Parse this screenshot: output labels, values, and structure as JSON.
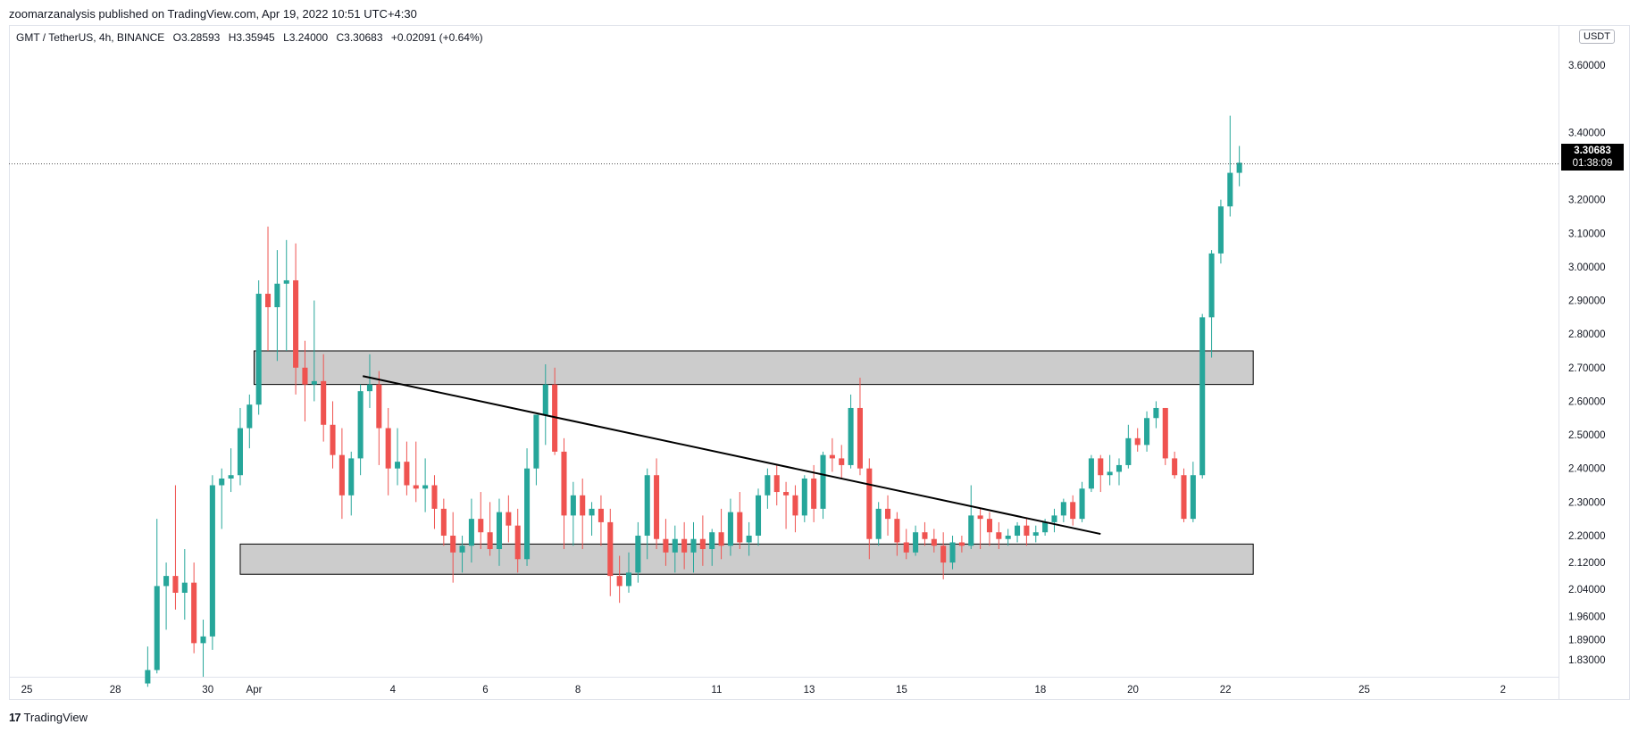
{
  "header": {
    "text": "zoomarzanalysis published on TradingView.com, Apr 19, 2022 10:51 UTC+4:30"
  },
  "legend": {
    "symbol": "GMT / TetherUS, 4h, BINANCE",
    "open": "O3.28593",
    "high": "H3.35945",
    "low": "L3.24000",
    "close": "C3.30683",
    "change": "+0.02091 (+0.64%)"
  },
  "price_axis": {
    "currency": "USDT",
    "last_price": "3.30683",
    "countdown": "01:38:09"
  },
  "footer": {
    "brand": "TradingView",
    "logo_mark": "17"
  },
  "colors": {
    "up": "#26a69a",
    "down": "#ef5350",
    "zone_fill": "#cccccc",
    "zone_border": "#000000",
    "trendline": "#000000"
  },
  "chart_data": {
    "type": "candlestick",
    "title": "GMT / TetherUS, 4h, BINANCE",
    "ylim": [
      1.78,
      3.72
    ],
    "yticks": [
      "3.60000",
      "3.40000",
      "3.20000",
      "3.10000",
      "3.00000",
      "2.90000",
      "2.80000",
      "2.70000",
      "2.60000",
      "2.50000",
      "2.40000",
      "2.30000",
      "2.20000",
      "2.12000",
      "2.04000",
      "1.96000",
      "1.89000",
      "1.83000"
    ],
    "ytick_values": [
      3.6,
      3.4,
      3.2,
      3.1,
      3.0,
      2.9,
      2.8,
      2.7,
      2.6,
      2.5,
      2.4,
      2.3,
      2.2,
      2.12,
      2.04,
      1.96,
      1.89,
      1.83
    ],
    "xlim_days": [
      -5.3,
      28.2
    ],
    "xtick_labels": [
      "25",
      "28",
      "30",
      "Apr",
      "4",
      "6",
      "8",
      "11",
      "13",
      "15",
      "18",
      "20",
      "22",
      "25",
      "2"
    ],
    "xtick_days": [
      -6,
      -3,
      -1,
      0,
      3,
      5,
      7,
      10,
      12,
      14,
      17,
      19,
      21,
      24,
      27
    ],
    "zones": [
      {
        "name": "resistance-zone",
        "start_day": 0.0,
        "end_day": 21.6,
        "top": 2.75,
        "bottom": 2.65
      },
      {
        "name": "support-zone",
        "start_day": -0.3,
        "end_day": 21.6,
        "top": 2.175,
        "bottom": 2.085
      }
    ],
    "trendline": {
      "start_day": 2.35,
      "start_price": 2.675,
      "end_day": 18.3,
      "end_price": 2.205
    },
    "current_price": 3.30683,
    "candle_width_days": 0.13,
    "candles": [
      {
        "d": -2.3,
        "o": 1.76,
        "h": 1.87,
        "l": 1.75,
        "c": 1.8
      },
      {
        "d": -2.1,
        "o": 1.8,
        "h": 2.25,
        "l": 1.79,
        "c": 2.05
      },
      {
        "d": -1.9,
        "o": 2.05,
        "h": 2.12,
        "l": 1.92,
        "c": 2.08
      },
      {
        "d": -1.7,
        "o": 2.08,
        "h": 2.35,
        "l": 1.98,
        "c": 2.03
      },
      {
        "d": -1.5,
        "o": 2.03,
        "h": 2.16,
        "l": 1.95,
        "c": 2.06
      },
      {
        "d": -1.3,
        "o": 2.06,
        "h": 2.12,
        "l": 1.85,
        "c": 1.88
      },
      {
        "d": -1.1,
        "o": 1.88,
        "h": 1.95,
        "l": 1.78,
        "c": 1.9
      },
      {
        "d": -0.9,
        "o": 1.9,
        "h": 2.38,
        "l": 1.86,
        "c": 2.35
      },
      {
        "d": -0.7,
        "o": 2.35,
        "h": 2.4,
        "l": 2.22,
        "c": 2.37
      },
      {
        "d": -0.5,
        "o": 2.37,
        "h": 2.46,
        "l": 2.33,
        "c": 2.38
      },
      {
        "d": -0.3,
        "o": 2.38,
        "h": 2.58,
        "l": 2.35,
        "c": 2.52
      },
      {
        "d": -0.1,
        "o": 2.52,
        "h": 2.62,
        "l": 2.46,
        "c": 2.59
      },
      {
        "d": 0.1,
        "o": 2.59,
        "h": 2.96,
        "l": 2.56,
        "c": 2.92
      },
      {
        "d": 0.3,
        "o": 2.92,
        "h": 3.12,
        "l": 2.75,
        "c": 2.88
      },
      {
        "d": 0.5,
        "o": 2.88,
        "h": 3.05,
        "l": 2.72,
        "c": 2.95
      },
      {
        "d": 0.7,
        "o": 2.95,
        "h": 3.08,
        "l": 2.75,
        "c": 2.96
      },
      {
        "d": 0.9,
        "o": 2.96,
        "h": 3.07,
        "l": 2.62,
        "c": 2.7
      },
      {
        "d": 1.1,
        "o": 2.7,
        "h": 2.78,
        "l": 2.54,
        "c": 2.65
      },
      {
        "d": 1.3,
        "o": 2.65,
        "h": 2.9,
        "l": 2.6,
        "c": 2.66
      },
      {
        "d": 1.5,
        "o": 2.66,
        "h": 2.74,
        "l": 2.48,
        "c": 2.53
      },
      {
        "d": 1.7,
        "o": 2.53,
        "h": 2.6,
        "l": 2.4,
        "c": 2.44
      },
      {
        "d": 1.9,
        "o": 2.44,
        "h": 2.52,
        "l": 2.25,
        "c": 2.32
      },
      {
        "d": 2.1,
        "o": 2.32,
        "h": 2.45,
        "l": 2.26,
        "c": 2.43
      },
      {
        "d": 2.3,
        "o": 2.43,
        "h": 2.65,
        "l": 2.38,
        "c": 2.63
      },
      {
        "d": 2.5,
        "o": 2.63,
        "h": 2.74,
        "l": 2.58,
        "c": 2.65
      },
      {
        "d": 2.7,
        "o": 2.65,
        "h": 2.69,
        "l": 2.41,
        "c": 2.52
      },
      {
        "d": 2.9,
        "o": 2.52,
        "h": 2.58,
        "l": 2.32,
        "c": 2.4
      },
      {
        "d": 3.1,
        "o": 2.4,
        "h": 2.52,
        "l": 2.35,
        "c": 2.42
      },
      {
        "d": 3.3,
        "o": 2.42,
        "h": 2.48,
        "l": 2.32,
        "c": 2.35
      },
      {
        "d": 3.5,
        "o": 2.35,
        "h": 2.48,
        "l": 2.3,
        "c": 2.34
      },
      {
        "d": 3.7,
        "o": 2.34,
        "h": 2.43,
        "l": 2.27,
        "c": 2.35
      },
      {
        "d": 3.9,
        "o": 2.35,
        "h": 2.38,
        "l": 2.22,
        "c": 2.28
      },
      {
        "d": 4.1,
        "o": 2.28,
        "h": 2.31,
        "l": 2.17,
        "c": 2.2
      },
      {
        "d": 4.3,
        "o": 2.2,
        "h": 2.27,
        "l": 2.06,
        "c": 2.15
      },
      {
        "d": 4.5,
        "o": 2.15,
        "h": 2.2,
        "l": 2.09,
        "c": 2.17
      },
      {
        "d": 4.7,
        "o": 2.17,
        "h": 2.31,
        "l": 2.12,
        "c": 2.25
      },
      {
        "d": 4.9,
        "o": 2.25,
        "h": 2.33,
        "l": 2.16,
        "c": 2.21
      },
      {
        "d": 5.1,
        "o": 2.21,
        "h": 2.3,
        "l": 2.14,
        "c": 2.16
      },
      {
        "d": 5.3,
        "o": 2.16,
        "h": 2.31,
        "l": 2.11,
        "c": 2.27
      },
      {
        "d": 5.5,
        "o": 2.27,
        "h": 2.32,
        "l": 2.18,
        "c": 2.23
      },
      {
        "d": 5.7,
        "o": 2.23,
        "h": 2.28,
        "l": 2.09,
        "c": 2.13
      },
      {
        "d": 5.9,
        "o": 2.13,
        "h": 2.46,
        "l": 2.11,
        "c": 2.4
      },
      {
        "d": 6.1,
        "o": 2.4,
        "h": 2.56,
        "l": 2.35,
        "c": 2.56
      },
      {
        "d": 6.3,
        "o": 2.56,
        "h": 2.71,
        "l": 2.47,
        "c": 2.65
      },
      {
        "d": 6.5,
        "o": 2.65,
        "h": 2.7,
        "l": 2.44,
        "c": 2.45
      },
      {
        "d": 6.7,
        "o": 2.45,
        "h": 2.49,
        "l": 2.16,
        "c": 2.26
      },
      {
        "d": 6.9,
        "o": 2.26,
        "h": 2.36,
        "l": 2.17,
        "c": 2.32
      },
      {
        "d": 7.1,
        "o": 2.32,
        "h": 2.37,
        "l": 2.16,
        "c": 2.26
      },
      {
        "d": 7.3,
        "o": 2.26,
        "h": 2.3,
        "l": 2.2,
        "c": 2.28
      },
      {
        "d": 7.5,
        "o": 2.28,
        "h": 2.32,
        "l": 2.17,
        "c": 2.24
      },
      {
        "d": 7.7,
        "o": 2.24,
        "h": 2.28,
        "l": 2.02,
        "c": 2.08
      },
      {
        "d": 7.9,
        "o": 2.08,
        "h": 2.14,
        "l": 2.0,
        "c": 2.05
      },
      {
        "d": 8.1,
        "o": 2.05,
        "h": 2.15,
        "l": 2.03,
        "c": 2.09
      },
      {
        "d": 8.3,
        "o": 2.09,
        "h": 2.24,
        "l": 2.06,
        "c": 2.2
      },
      {
        "d": 8.5,
        "o": 2.2,
        "h": 2.4,
        "l": 2.13,
        "c": 2.38
      },
      {
        "d": 8.7,
        "o": 2.38,
        "h": 2.43,
        "l": 2.16,
        "c": 2.19
      },
      {
        "d": 8.9,
        "o": 2.19,
        "h": 2.25,
        "l": 2.11,
        "c": 2.15
      },
      {
        "d": 9.1,
        "o": 2.15,
        "h": 2.23,
        "l": 2.09,
        "c": 2.19
      },
      {
        "d": 9.3,
        "o": 2.19,
        "h": 2.24,
        "l": 2.1,
        "c": 2.15
      },
      {
        "d": 9.5,
        "o": 2.15,
        "h": 2.24,
        "l": 2.09,
        "c": 2.19
      },
      {
        "d": 9.7,
        "o": 2.19,
        "h": 2.26,
        "l": 2.11,
        "c": 2.16
      },
      {
        "d": 9.9,
        "o": 2.16,
        "h": 2.22,
        "l": 2.11,
        "c": 2.21
      },
      {
        "d": 10.1,
        "o": 2.21,
        "h": 2.28,
        "l": 2.13,
        "c": 2.17
      },
      {
        "d": 10.3,
        "o": 2.17,
        "h": 2.31,
        "l": 2.14,
        "c": 2.27
      },
      {
        "d": 10.5,
        "o": 2.27,
        "h": 2.33,
        "l": 2.16,
        "c": 2.18
      },
      {
        "d": 10.7,
        "o": 2.18,
        "h": 2.24,
        "l": 2.14,
        "c": 2.2
      },
      {
        "d": 10.9,
        "o": 2.2,
        "h": 2.34,
        "l": 2.17,
        "c": 2.32
      },
      {
        "d": 11.1,
        "o": 2.32,
        "h": 2.4,
        "l": 2.28,
        "c": 2.38
      },
      {
        "d": 11.3,
        "o": 2.38,
        "h": 2.41,
        "l": 2.29,
        "c": 2.33
      },
      {
        "d": 11.5,
        "o": 2.33,
        "h": 2.36,
        "l": 2.22,
        "c": 2.32
      },
      {
        "d": 11.7,
        "o": 2.32,
        "h": 2.35,
        "l": 2.21,
        "c": 2.26
      },
      {
        "d": 11.9,
        "o": 2.26,
        "h": 2.38,
        "l": 2.24,
        "c": 2.37
      },
      {
        "d": 12.1,
        "o": 2.37,
        "h": 2.41,
        "l": 2.24,
        "c": 2.28
      },
      {
        "d": 12.3,
        "o": 2.28,
        "h": 2.45,
        "l": 2.25,
        "c": 2.44
      },
      {
        "d": 12.5,
        "o": 2.44,
        "h": 2.49,
        "l": 2.39,
        "c": 2.43
      },
      {
        "d": 12.7,
        "o": 2.43,
        "h": 2.47,
        "l": 2.37,
        "c": 2.41
      },
      {
        "d": 12.9,
        "o": 2.41,
        "h": 2.62,
        "l": 2.4,
        "c": 2.58
      },
      {
        "d": 13.1,
        "o": 2.58,
        "h": 2.67,
        "l": 2.38,
        "c": 2.4
      },
      {
        "d": 13.3,
        "o": 2.4,
        "h": 2.43,
        "l": 2.13,
        "c": 2.19
      },
      {
        "d": 13.5,
        "o": 2.19,
        "h": 2.3,
        "l": 2.17,
        "c": 2.28
      },
      {
        "d": 13.7,
        "o": 2.28,
        "h": 2.32,
        "l": 2.2,
        "c": 2.25
      },
      {
        "d": 13.9,
        "o": 2.25,
        "h": 2.27,
        "l": 2.14,
        "c": 2.18
      },
      {
        "d": 14.1,
        "o": 2.18,
        "h": 2.22,
        "l": 2.13,
        "c": 2.15
      },
      {
        "d": 14.3,
        "o": 2.15,
        "h": 2.23,
        "l": 2.14,
        "c": 2.21
      },
      {
        "d": 14.5,
        "o": 2.21,
        "h": 2.24,
        "l": 2.17,
        "c": 2.19
      },
      {
        "d": 14.7,
        "o": 2.19,
        "h": 2.22,
        "l": 2.15,
        "c": 2.17
      },
      {
        "d": 14.9,
        "o": 2.17,
        "h": 2.21,
        "l": 2.07,
        "c": 2.12
      },
      {
        "d": 15.1,
        "o": 2.12,
        "h": 2.2,
        "l": 2.1,
        "c": 2.18
      },
      {
        "d": 15.3,
        "o": 2.18,
        "h": 2.2,
        "l": 2.15,
        "c": 2.17
      },
      {
        "d": 15.5,
        "o": 2.17,
        "h": 2.35,
        "l": 2.16,
        "c": 2.26
      },
      {
        "d": 15.7,
        "o": 2.26,
        "h": 2.28,
        "l": 2.16,
        "c": 2.25
      },
      {
        "d": 15.9,
        "o": 2.25,
        "h": 2.27,
        "l": 2.17,
        "c": 2.21
      },
      {
        "d": 16.1,
        "o": 2.21,
        "h": 2.24,
        "l": 2.16,
        "c": 2.19
      },
      {
        "d": 16.3,
        "o": 2.19,
        "h": 2.22,
        "l": 2.17,
        "c": 2.2
      },
      {
        "d": 16.5,
        "o": 2.2,
        "h": 2.24,
        "l": 2.18,
        "c": 2.23
      },
      {
        "d": 16.7,
        "o": 2.23,
        "h": 2.25,
        "l": 2.17,
        "c": 2.2
      },
      {
        "d": 16.9,
        "o": 2.2,
        "h": 2.23,
        "l": 2.18,
        "c": 2.21
      },
      {
        "d": 17.1,
        "o": 2.21,
        "h": 2.25,
        "l": 2.2,
        "c": 2.24
      },
      {
        "d": 17.3,
        "o": 2.24,
        "h": 2.28,
        "l": 2.21,
        "c": 2.26
      },
      {
        "d": 17.5,
        "o": 2.26,
        "h": 2.31,
        "l": 2.24,
        "c": 2.3
      },
      {
        "d": 17.7,
        "o": 2.3,
        "h": 2.32,
        "l": 2.23,
        "c": 2.25
      },
      {
        "d": 17.9,
        "o": 2.25,
        "h": 2.36,
        "l": 2.24,
        "c": 2.34
      },
      {
        "d": 18.1,
        "o": 2.34,
        "h": 2.44,
        "l": 2.33,
        "c": 2.43
      },
      {
        "d": 18.3,
        "o": 2.43,
        "h": 2.44,
        "l": 2.33,
        "c": 2.38
      },
      {
        "d": 18.5,
        "o": 2.38,
        "h": 2.44,
        "l": 2.35,
        "c": 2.39
      },
      {
        "d": 18.7,
        "o": 2.39,
        "h": 2.43,
        "l": 2.35,
        "c": 2.41
      },
      {
        "d": 18.9,
        "o": 2.41,
        "h": 2.53,
        "l": 2.4,
        "c": 2.49
      },
      {
        "d": 19.1,
        "o": 2.49,
        "h": 2.52,
        "l": 2.45,
        "c": 2.47
      },
      {
        "d": 19.3,
        "o": 2.47,
        "h": 2.57,
        "l": 2.45,
        "c": 2.55
      },
      {
        "d": 19.5,
        "o": 2.55,
        "h": 2.6,
        "l": 2.52,
        "c": 2.58
      },
      {
        "d": 19.7,
        "o": 2.58,
        "h": 2.58,
        "l": 2.41,
        "c": 2.43
      },
      {
        "d": 19.9,
        "o": 2.43,
        "h": 2.45,
        "l": 2.37,
        "c": 2.38
      },
      {
        "d": 20.1,
        "o": 2.38,
        "h": 2.4,
        "l": 2.24,
        "c": 2.25
      },
      {
        "d": 20.3,
        "o": 2.25,
        "h": 2.42,
        "l": 2.24,
        "c": 2.38
      },
      {
        "d": 20.5,
        "o": 2.38,
        "h": 2.86,
        "l": 2.37,
        "c": 2.85
      },
      {
        "d": 20.7,
        "o": 2.85,
        "h": 3.05,
        "l": 2.73,
        "c": 3.04
      },
      {
        "d": 20.9,
        "o": 3.04,
        "h": 3.2,
        "l": 3.01,
        "c": 3.18
      },
      {
        "d": 21.1,
        "o": 3.18,
        "h": 3.45,
        "l": 3.15,
        "c": 3.28
      },
      {
        "d": 21.3,
        "o": 3.28,
        "h": 3.36,
        "l": 3.24,
        "c": 3.31
      }
    ]
  }
}
